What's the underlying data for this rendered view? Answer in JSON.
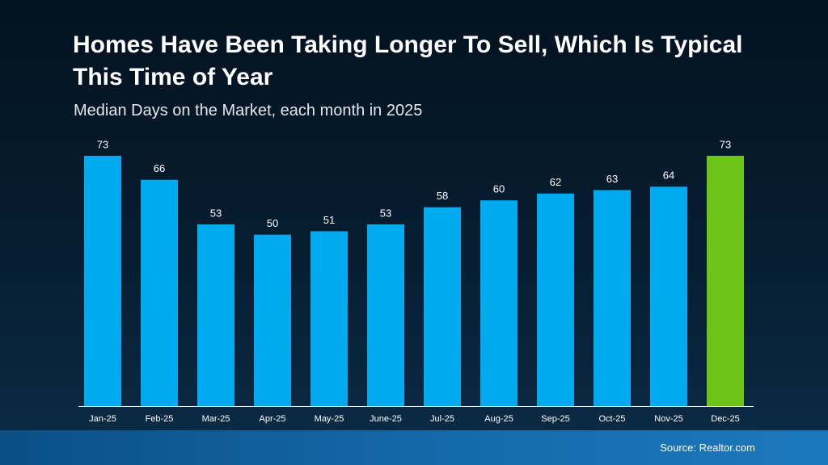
{
  "chart_data": {
    "type": "bar",
    "title": "Homes Have Been Taking Longer To Sell, Which Is Typical This Time of Year",
    "subtitle": "Median Days on the Market, each month in 2025",
    "categories": [
      "Jan-25",
      "Feb-25",
      "Mar-25",
      "Apr-25",
      "May-25",
      "June-25",
      "Jul-25",
      "Aug-25",
      "Sep-25",
      "Oct-25",
      "Nov-25",
      "Dec-25"
    ],
    "values": [
      73,
      66,
      53,
      50,
      51,
      53,
      58,
      60,
      62,
      63,
      64,
      73
    ],
    "colors": [
      "#00aaef",
      "#00aaef",
      "#00aaef",
      "#00aaef",
      "#00aaef",
      "#00aaef",
      "#00aaef",
      "#00aaef",
      "#00aaef",
      "#00aaef",
      "#00aaef",
      "#6cc417"
    ],
    "source": "Source: Realtor.com"
  }
}
